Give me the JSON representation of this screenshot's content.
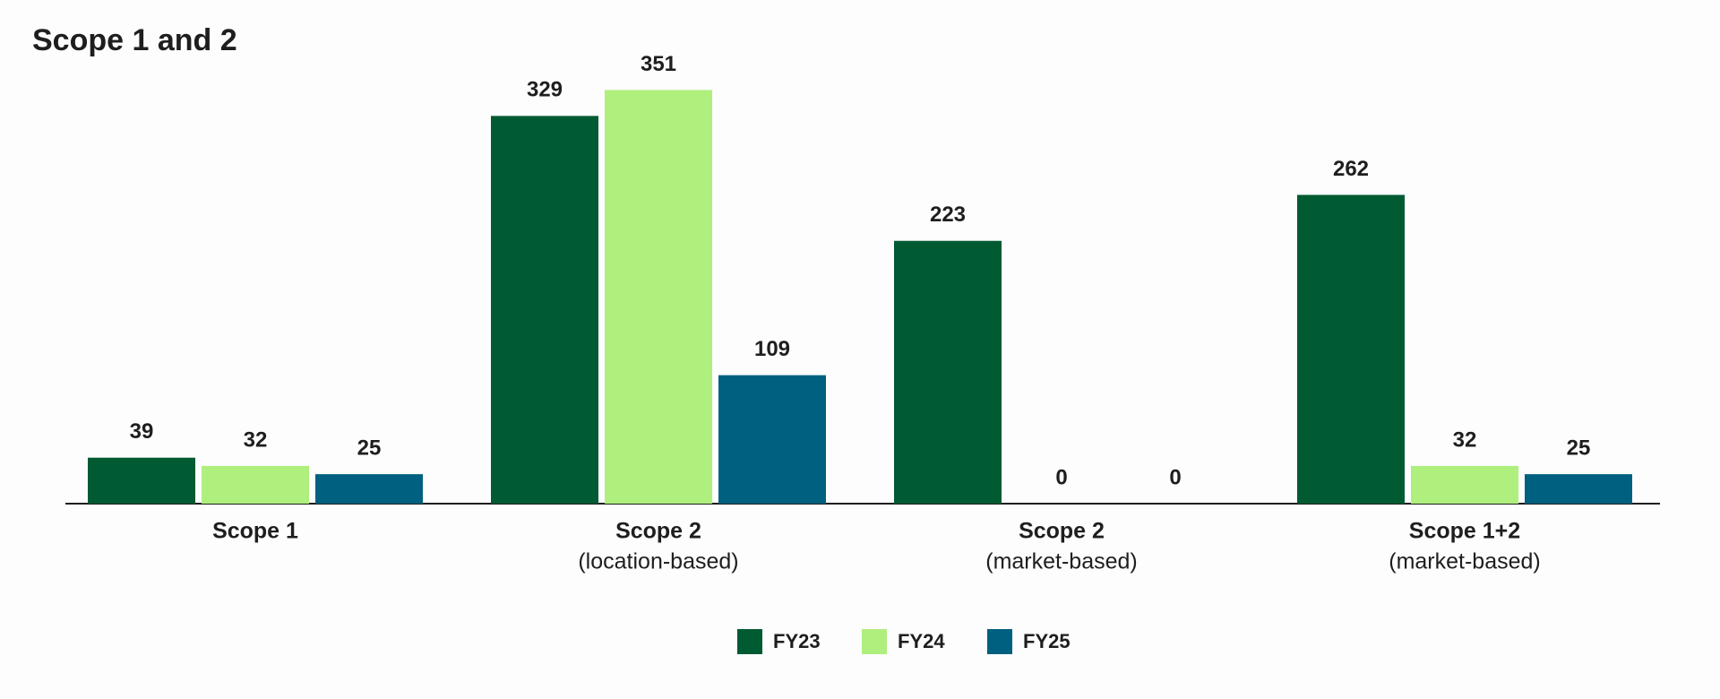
{
  "chart_data": {
    "type": "grouped_bar",
    "title": "Scope 1 and 2",
    "categories": [
      "Scope 1",
      "Scope 2",
      "Scope 2",
      "Scope 1+2"
    ],
    "category_notes": [
      null,
      "(location-based)",
      "(market-based)",
      "(market-based)"
    ],
    "series": [
      {
        "name": "FY23",
        "color": "#005a32",
        "values": [
          39,
          329,
          223,
          262
        ]
      },
      {
        "name": "FY24",
        "color": "#aeef7e",
        "values": [
          32,
          351,
          0,
          32
        ]
      },
      {
        "name": "FY25",
        "color": "#00607f",
        "values": [
          25,
          109,
          0,
          25
        ]
      }
    ],
    "ylim": [
      0,
      400
    ],
    "legend": "bottom"
  }
}
